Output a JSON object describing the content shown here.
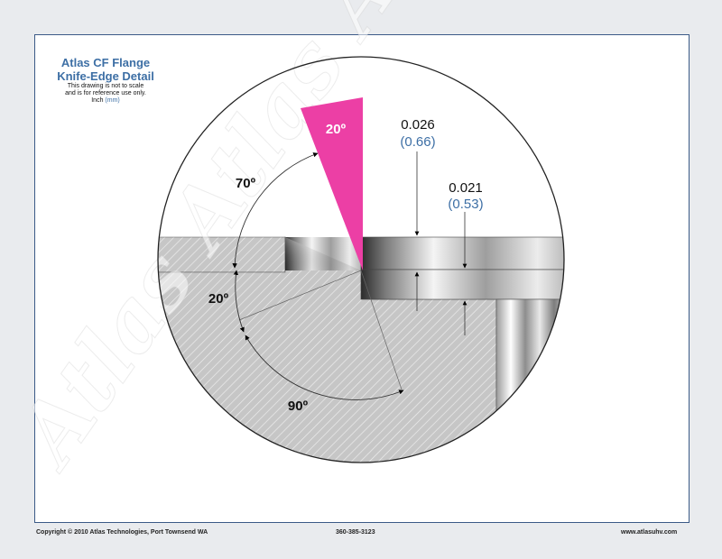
{
  "title": {
    "line1": "Atlas CF Flange",
    "line2": "Knife-Edge Detail",
    "note1": "This drawing is not to scale",
    "note2": "and is for reference use only.",
    "units_inch": "Inch",
    "units_mm": "(mm)"
  },
  "angles": {
    "knife": "20º",
    "upper": "70º",
    "lower_left": "20º",
    "bottom": "90º"
  },
  "dimensions": {
    "groove_depth_in": "0.026",
    "groove_depth_mm": "(0.66)",
    "gasket_gap_in": "0.021",
    "gasket_gap_mm": "(0.53)"
  },
  "watermark": "Atlas Atlas Atlas",
  "footer": {
    "copyright": "Copyright © 2010 Atlas Technologies, Port Townsend WA",
    "phone": "360-385-3123",
    "website": "www.atlasuhv.com"
  },
  "colors": {
    "knife_wedge": "#ec3fa5",
    "title": "#3d6fa5",
    "metric": "#3d6fa5",
    "hatch": "#c6c6c6"
  }
}
